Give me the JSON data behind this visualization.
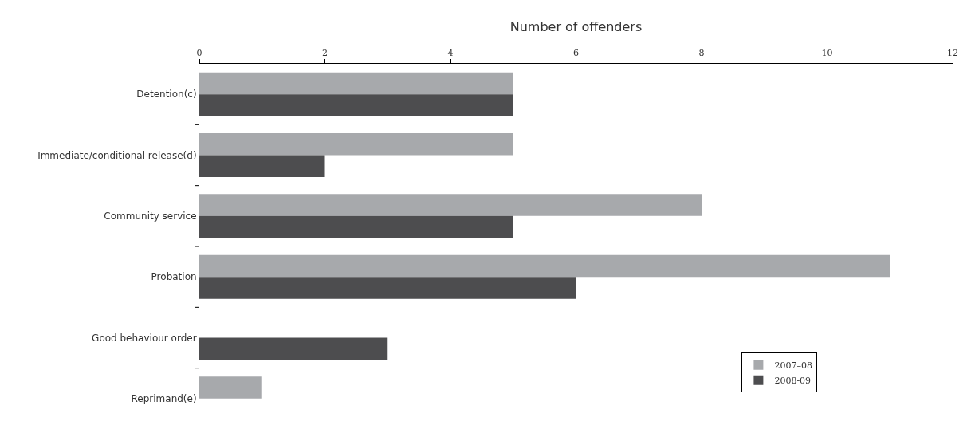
{
  "chart_data": {
    "type": "bar",
    "orientation": "horizontal",
    "xlabel": "Number of offenders",
    "categories": [
      "Detention(c)",
      "Immediate/conditional release(d)",
      "Community service",
      "Probation",
      "Good behaviour order",
      "Reprimand(e)"
    ],
    "series": [
      {
        "name": "2007–08",
        "color": "#a7a9ac",
        "values": [
          5,
          5,
          8,
          11,
          0,
          1
        ]
      },
      {
        "name": "2008-09",
        "color": "#4d4d4f",
        "values": [
          5,
          2,
          5,
          6,
          3,
          0
        ]
      }
    ],
    "xlim": [
      0,
      12
    ],
    "xticks": [
      0,
      2,
      4,
      6,
      8,
      10,
      12
    ],
    "legend": "bottom right"
  }
}
